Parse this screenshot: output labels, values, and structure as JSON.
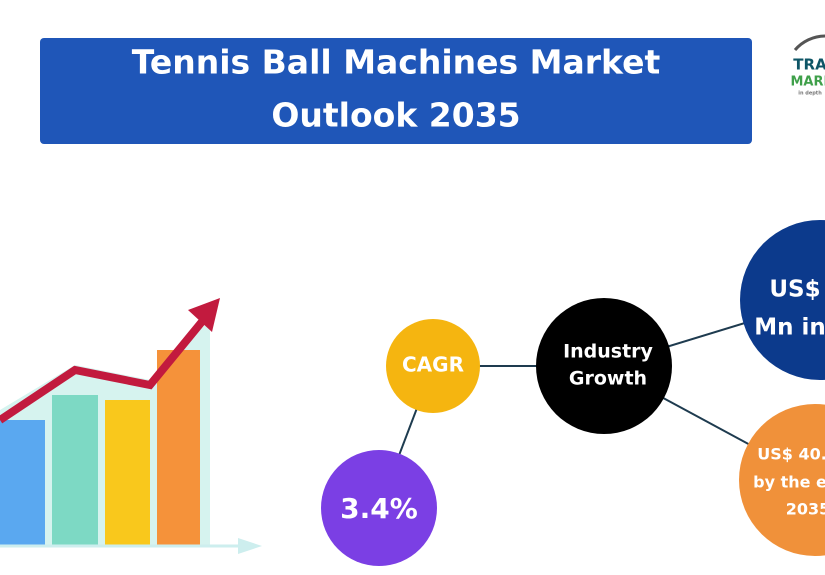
{
  "header": {
    "title_lines": [
      "Tennis Ball Machines Market",
      "Outlook 2035"
    ]
  },
  "logo": {
    "line1": "TRA",
    "line2": "MARK",
    "tagline": "in depth"
  },
  "nodes": [
    {
      "lines": [
        "CAGR"
      ]
    },
    {
      "lines": [
        "3.4%"
      ]
    },
    {
      "lines": [
        "Industry",
        "Growth"
      ]
    },
    {
      "lines": [
        "US$",
        "Mn in"
      ]
    },
    {
      "lines": [
        "US$ 40.",
        "by the e",
        "2035"
      ]
    }
  ]
}
